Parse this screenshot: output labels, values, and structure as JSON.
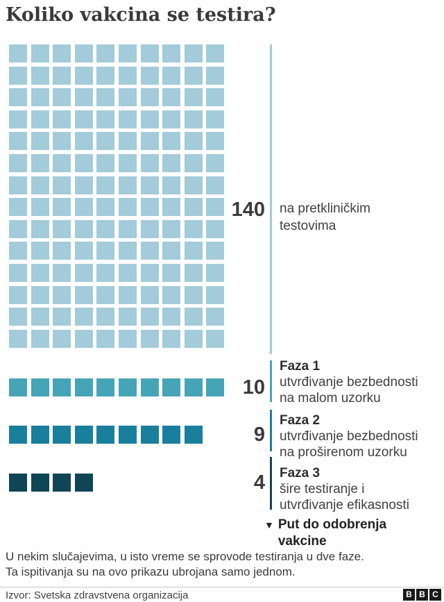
{
  "title": "Koliko vakcina se testira?",
  "chart_data": {
    "type": "pictogram",
    "title": "Koliko vakcina se testira?",
    "categories": [
      "na pretkliničkim testovima",
      "Faza 1",
      "Faza 2",
      "Faza 3"
    ],
    "values": [
      140,
      10,
      9,
      4
    ],
    "grid_columns": 10,
    "sections": [
      {
        "id": "preclinical",
        "count": 140,
        "number": "140",
        "color": "#a3cbd9",
        "line_color": "#a3cbd9",
        "desc1": "na pretkliničkim",
        "desc2": "testovima"
      },
      {
        "id": "faza-1",
        "count": 10,
        "number": "10",
        "color": "#46a4b7",
        "line_color": "#46a4b7",
        "label": "Faza 1",
        "desc1": "utvrđivanje bezbednosti",
        "desc2": "na malom uzorku"
      },
      {
        "id": "faza-2",
        "count": 9,
        "number": "9",
        "color": "#1a7f9c",
        "line_color": "#1a7f9c",
        "label": "Faza 2",
        "desc1": "utvrđivanje bezbednosti",
        "desc2": "na proširenom uzorku"
      },
      {
        "id": "faza-3",
        "count": 4,
        "number": "4",
        "color": "#0f4555",
        "line_color": "#0f4555",
        "label": "Faza 3",
        "desc1": "šire testiranje i",
        "desc2": "utvrđivanje efikasnosti"
      }
    ],
    "path_label": {
      "marker": "▼",
      "line1": "Put do odobrenja",
      "line2": "vakcine"
    }
  },
  "footnote": {
    "line1": "U nekim slučajevima, u isto vreme se sprovode testiranja u dve faze.",
    "line2": "Ta ispitivanja su na ovo prikazu ubrojana samo jednom."
  },
  "source": {
    "label": "Izvor: Svetska zdravstvena organizacija"
  },
  "brand": {
    "letter1": "B",
    "letter2": "B",
    "letter3": "C"
  }
}
